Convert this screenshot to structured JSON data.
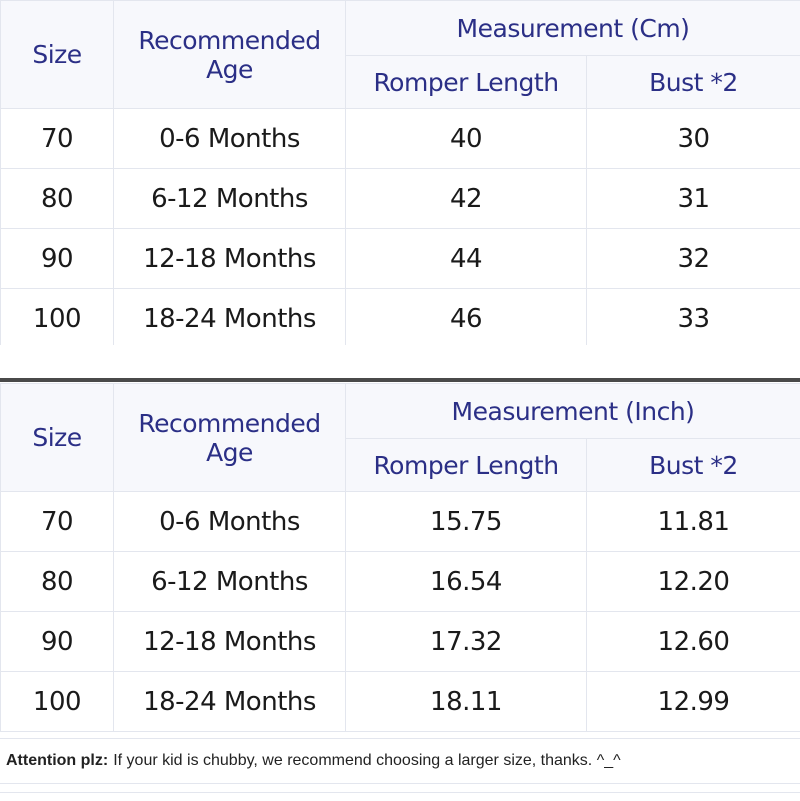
{
  "tables": [
    {
      "headers": {
        "size": "Size",
        "age": "Recommended Age",
        "measurement": "Measurement (Cm)",
        "length": "Romper Length",
        "bust": "Bust *2"
      },
      "rows": [
        {
          "size": "70",
          "age": "0-6 Months",
          "length": "40",
          "bust": "30"
        },
        {
          "size": "80",
          "age": "6-12 Months",
          "length": "42",
          "bust": "31"
        },
        {
          "size": "90",
          "age": "12-18 Months",
          "length": "44",
          "bust": "32"
        },
        {
          "size": "100",
          "age": "18-24 Months",
          "length": "46",
          "bust": "33"
        }
      ]
    },
    {
      "headers": {
        "size": "Size",
        "age": "Recommended Age",
        "measurement": "Measurement (Inch)",
        "length": "Romper Length",
        "bust": "Bust *2"
      },
      "rows": [
        {
          "size": "70",
          "age": "0-6 Months",
          "length": "15.75",
          "bust": "11.81"
        },
        {
          "size": "80",
          "age": "6-12 Months",
          "length": "16.54",
          "bust": "12.20"
        },
        {
          "size": "90",
          "age": "12-18 Months",
          "length": "17.32",
          "bust": "12.60"
        },
        {
          "size": "100",
          "age": "18-24 Months",
          "length": "18.11",
          "bust": "12.99"
        }
      ]
    }
  ],
  "note": {
    "lead": "Attention plz:",
    "text": "If your kid is chubby, we recommend choosing a larger size, thanks. ^_^"
  },
  "colors": {
    "header_text": "#2b2f86",
    "header_bg": "#f7f8fc",
    "grid": "#e3e6ee",
    "divider": "#4a4a4a"
  }
}
